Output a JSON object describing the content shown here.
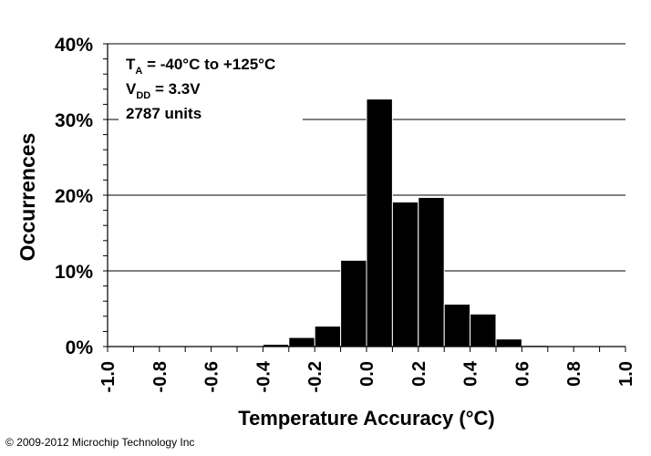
{
  "chart_data": {
    "type": "bar",
    "title": "",
    "xlabel": "Temperature Accuracy (°C)",
    "ylabel": "Occurrences",
    "xlim": [
      -1.0,
      1.0
    ],
    "ylim": [
      0,
      40
    ],
    "bin_width": 0.1,
    "grid": true,
    "xticks": [
      "-1.0",
      "-0.8",
      "-0.6",
      "-0.4",
      "-0.2",
      "0.0",
      "0.2",
      "0.4",
      "0.6",
      "0.8",
      "1.0"
    ],
    "yticks": [
      "0%",
      "10%",
      "20%",
      "30%",
      "40%"
    ],
    "categories": [
      "-1.0",
      "-0.9",
      "-0.8",
      "-0.7",
      "-0.6",
      "-0.5",
      "-0.4",
      "-0.3",
      "-0.2",
      "-0.1",
      "0.0",
      "0.1",
      "0.2",
      "0.3",
      "0.4",
      "0.5",
      "0.6",
      "0.7",
      "0.8",
      "0.9"
    ],
    "values": [
      0,
      0,
      0,
      0,
      0.05,
      0.1,
      0.3,
      1.2,
      2.7,
      11.4,
      32.7,
      19.1,
      19.7,
      5.6,
      4.3,
      1.0,
      0.15,
      0,
      0,
      0
    ],
    "annotations": {
      "line1_main": "T",
      "line1_sub": "A",
      "line1_rest": " = -40°C to +125°C",
      "line2_main": "V",
      "line2_sub": "DD",
      "line2_rest": " = 3.3V",
      "line3": "2787 units"
    }
  },
  "footer": {
    "copyright": "© 2009-2012 Microchip Technology Inc"
  }
}
